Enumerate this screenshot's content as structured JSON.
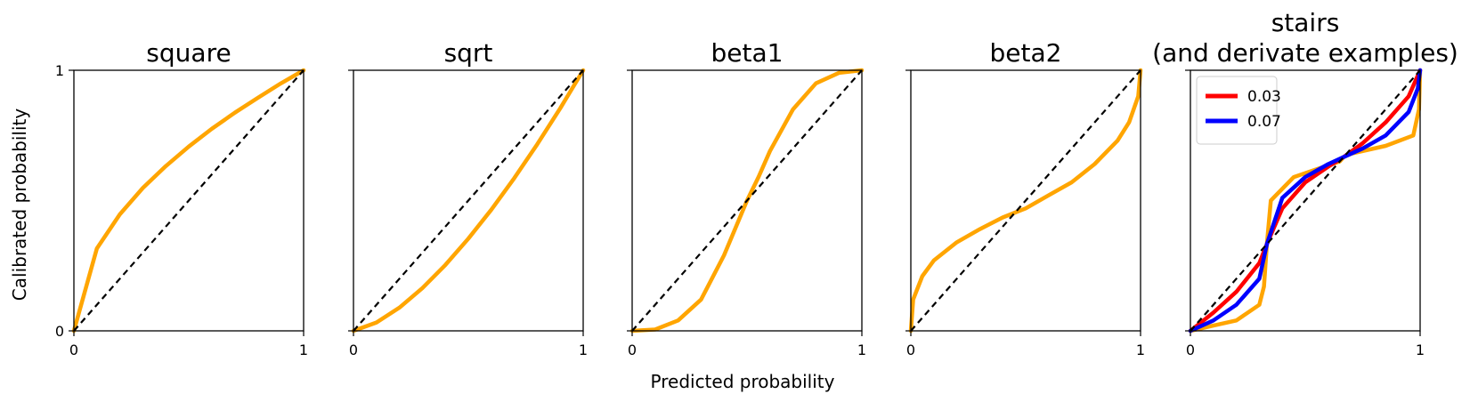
{
  "chart_data": {
    "type": "line",
    "xlabel": "Predicted probability",
    "ylabel": "Calibrated probability",
    "xlim": [
      0,
      1
    ],
    "ylim": [
      0,
      1
    ],
    "grid": false,
    "xticks": [
      "0",
      "1"
    ],
    "yticks": [
      "0",
      "1"
    ],
    "colors": {
      "curve": "#FFA500",
      "diagonal": "#000000",
      "series_a": "#FF0000",
      "series_b": "#0000FF"
    },
    "panels": [
      {
        "title": [
          "square"
        ],
        "series": [
          {
            "x": [
              0,
              0.1,
              0.2,
              0.3,
              0.4,
              0.5,
              0.6,
              0.7,
              0.8,
              0.9,
              1
            ],
            "values": [
              0,
              0.316,
              0.447,
              0.548,
              0.632,
              0.707,
              0.775,
              0.837,
              0.894,
              0.949,
              1
            ]
          }
        ]
      },
      {
        "title": [
          "sqrt"
        ],
        "series": [
          {
            "x": [
              0,
              0.1,
              0.2,
              0.3,
              0.4,
              0.5,
              0.6,
              0.7,
              0.8,
              0.9,
              1
            ],
            "values": [
              0,
              0.032,
              0.089,
              0.164,
              0.253,
              0.354,
              0.465,
              0.586,
              0.716,
              0.854,
              1
            ]
          }
        ]
      },
      {
        "title": [
          "beta1"
        ],
        "series": [
          {
            "x": [
              0,
              0.1,
              0.2,
              0.3,
              0.4,
              0.5,
              0.55,
              0.6,
              0.7,
              0.8,
              0.9,
              1
            ],
            "values": [
              0,
              0.005,
              0.04,
              0.12,
              0.29,
              0.5,
              0.59,
              0.69,
              0.85,
              0.95,
              0.99,
              1
            ]
          }
        ]
      },
      {
        "title": [
          "beta2"
        ],
        "series": [
          {
            "x": [
              0,
              0.01,
              0.05,
              0.1,
              0.2,
              0.3,
              0.4,
              0.5,
              0.6,
              0.7,
              0.8,
              0.9,
              0.95,
              0.99,
              1
            ],
            "values": [
              0,
              0.12,
              0.21,
              0.27,
              0.34,
              0.39,
              0.435,
              0.47,
              0.52,
              0.57,
              0.64,
              0.73,
              0.8,
              0.9,
              1
            ]
          }
        ]
      },
      {
        "title": [
          "stairs",
          "(and derivate examples)"
        ],
        "legend": {
          "position": "top-left"
        },
        "series": [
          {
            "x": [
              0,
              0.1,
              0.2,
              0.3,
              0.32,
              0.333,
              0.35,
              0.45,
              0.55,
              0.65,
              0.667,
              0.7,
              0.85,
              0.97,
              0.995,
              1
            ],
            "values": [
              0,
              0.02,
              0.04,
              0.1,
              0.17,
              0.333,
              0.5,
              0.59,
              0.62,
              0.65,
              0.667,
              0.68,
              0.71,
              0.75,
              0.85,
              1
            ]
          },
          {
            "name": "0.03",
            "x": [
              0,
              0.1,
              0.2,
              0.3,
              0.333,
              0.4,
              0.5,
              0.6,
              0.667,
              0.75,
              0.85,
              0.95,
              1
            ],
            "values": [
              0,
              0.07,
              0.15,
              0.26,
              0.333,
              0.47,
              0.57,
              0.63,
              0.667,
              0.72,
              0.8,
              0.9,
              1
            ]
          },
          {
            "name": "0.07",
            "x": [
              0,
              0.1,
              0.2,
              0.3,
              0.333,
              0.4,
              0.5,
              0.6,
              0.667,
              0.75,
              0.85,
              0.95,
              0.99,
              1
            ],
            "values": [
              0,
              0.04,
              0.1,
              0.2,
              0.333,
              0.51,
              0.59,
              0.64,
              0.667,
              0.7,
              0.75,
              0.84,
              0.93,
              1
            ]
          }
        ]
      }
    ]
  }
}
